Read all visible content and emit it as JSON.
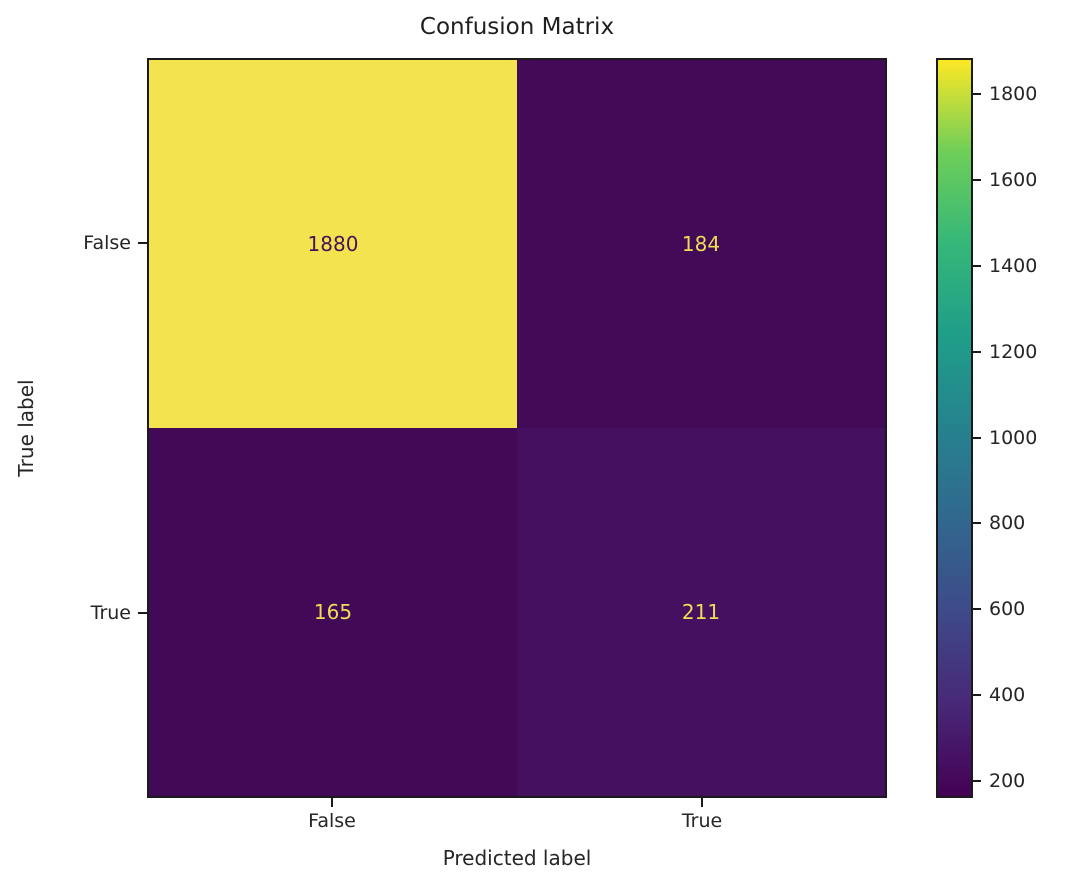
{
  "chart_data": {
    "type": "heatmap",
    "title": "Confusion Matrix",
    "xlabel": "Predicted label",
    "ylabel": "True label",
    "x_tick_labels": [
      "False",
      "True"
    ],
    "y_tick_labels": [
      "False",
      "True"
    ],
    "matrix": [
      [
        1880,
        184
      ],
      [
        165,
        211
      ]
    ],
    "matrix_display": [
      [
        "1880",
        "184"
      ],
      [
        "165",
        "211"
      ]
    ],
    "colormap": "viridis",
    "vmin": 165,
    "vmax": 1880,
    "colorbar_ticks": [
      "200",
      "400",
      "600",
      "800",
      "1000",
      "1200",
      "1400",
      "1600",
      "1800"
    ],
    "colorbar_tick_values": [
      200,
      400,
      600,
      800,
      1000,
      1200,
      1400,
      1600,
      1800
    ],
    "legend_position": "right-colorbar",
    "grid": false,
    "cell_colors": [
      [
        "#f3e34f",
        "#430b57"
      ],
      [
        "#420957",
        "#461060"
      ]
    ],
    "cell_text_colors": [
      [
        "#44135c",
        "#eedc55"
      ],
      [
        "#eedc55",
        "#eedc55"
      ]
    ]
  }
}
